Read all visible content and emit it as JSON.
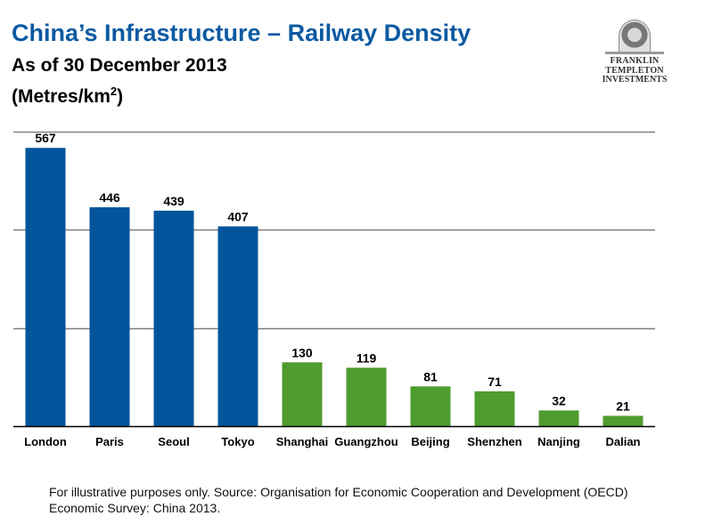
{
  "header": {
    "title": "China’s Infrastructure – Railway Density",
    "subtitle": "As of 30 December 2013",
    "units_prefix": "(Metres/km",
    "units_sup": "2",
    "units_suffix": ")"
  },
  "logo": {
    "line1": "FRANKLIN TEMPLETON",
    "line2": "INVESTMENTS"
  },
  "footnote": {
    "line1": "For illustrative purposes only. Source: Organisation for Economic Cooperation and Development (OECD)",
    "line2": "Economic Survey: China 2013."
  },
  "colors": {
    "title": "#0b5aa2",
    "global_cities": "#02559b",
    "china_cities": "#4f9c2f",
    "gridline": "#7f7f7f",
    "axis": "#000000"
  },
  "chart_data": {
    "type": "bar",
    "title": "China’s Infrastructure – Railway Density",
    "subtitle": "As of 30 December 2013",
    "ylabel": "Metres/km2",
    "xlabel": "",
    "categories": [
      "London",
      "Paris",
      "Seoul",
      "Tokyo",
      "Shanghai",
      "Guangzhou",
      "Beijing",
      "Shenzhen",
      "Nanjing",
      "Dalian"
    ],
    "values": [
      567,
      446,
      439,
      407,
      130,
      119,
      81,
      71,
      32,
      21
    ],
    "groups": [
      "global",
      "global",
      "global",
      "global",
      "china",
      "china",
      "china",
      "china",
      "china",
      "china"
    ],
    "data_labels": [
      "567",
      "446",
      "439",
      "407",
      "130",
      "119",
      "81",
      "71",
      "32",
      "21"
    ],
    "ylim": [
      0,
      600
    ],
    "gridlines": [
      200,
      400,
      600
    ],
    "grid": true,
    "y_tick_labels_visible": false,
    "legend": "none"
  }
}
